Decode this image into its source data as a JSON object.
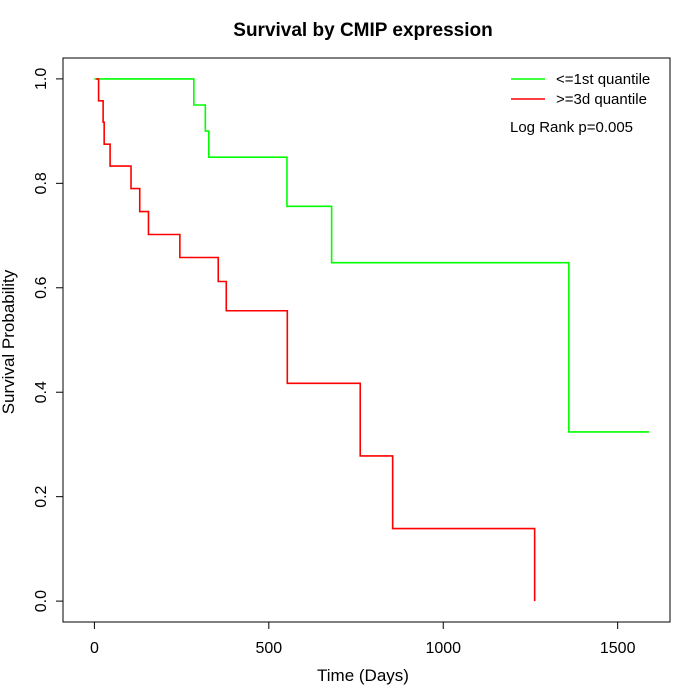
{
  "chart_data": {
    "type": "line",
    "title": "Survival by CMIP expression",
    "xlabel": "Time (Days)",
    "ylabel": "Survival Probability",
    "xlim": [
      -90,
      1650
    ],
    "ylim": [
      -0.04,
      1.04
    ],
    "xticks": [
      0,
      500,
      1000,
      1500
    ],
    "yticks": [
      0.0,
      0.2,
      0.4,
      0.6,
      0.8,
      1.0
    ],
    "xtick_labels": [
      "0",
      "500",
      "1000",
      "1500"
    ],
    "ytick_labels": [
      "0.0",
      "0.2",
      "0.4",
      "0.6",
      "0.8",
      "1.0"
    ],
    "grid": false,
    "legend_position": "top-right",
    "annotation": "Log Rank p=0.005",
    "series": [
      {
        "name": "<=1st quantile",
        "color": "#00ff00",
        "step": true,
        "x": [
          0,
          285,
          318,
          328,
          552,
          680,
          1360,
          1590
        ],
        "y": [
          1.0,
          0.95,
          0.9,
          0.85,
          0.756,
          0.648,
          0.324,
          0.324
        ]
      },
      {
        "name": ">=3d quantile",
        "color": "#ff0000",
        "step": true,
        "x": [
          5,
          12,
          25,
          28,
          45,
          105,
          130,
          155,
          245,
          355,
          378,
          553,
          762,
          855,
          1262,
          1262
        ],
        "y": [
          1.0,
          0.958,
          0.917,
          0.875,
          0.833,
          0.79,
          0.746,
          0.702,
          0.658,
          0.612,
          0.556,
          0.417,
          0.278,
          0.139,
          0.139,
          0.0
        ]
      }
    ]
  }
}
